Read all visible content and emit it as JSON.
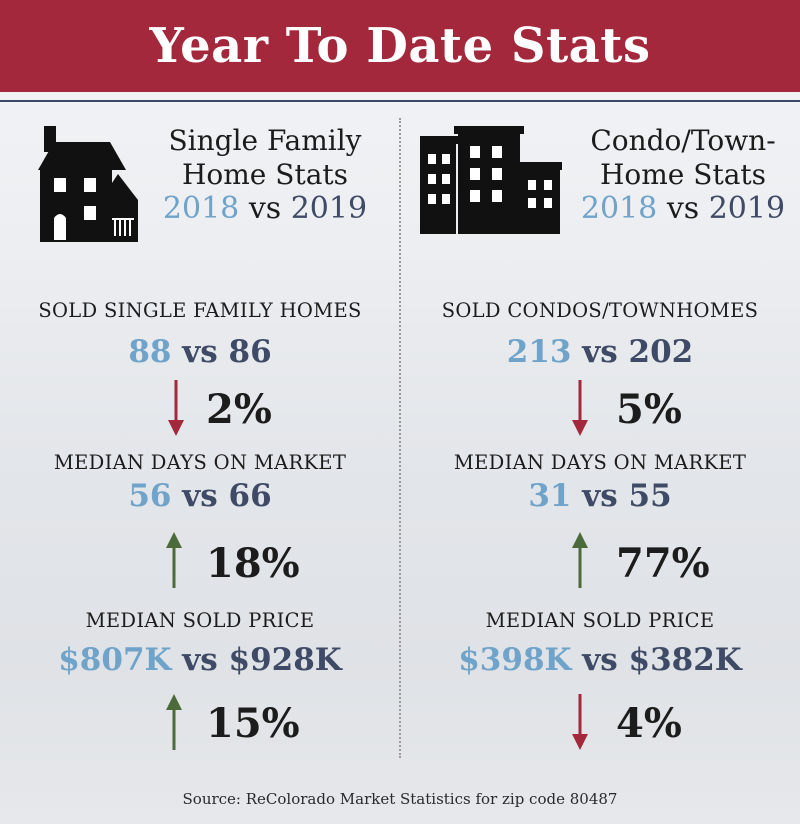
{
  "title": "Year To Date Stats",
  "colors": {
    "banner": "#a3283c",
    "year_2018": "#6fa3c9",
    "year_2019": "#3f4b66",
    "arrow_down": "#a3283c",
    "arrow_up": "#4d6b3a"
  },
  "left": {
    "icon": "house-icon",
    "heading_line1": "Single Family",
    "heading_line2": "Home Stats",
    "year_a": "2018",
    "vs": "vs",
    "year_b": "2019",
    "stats": [
      {
        "label": "SOLD SINGLE FAMILY HOMES",
        "value_a": "88",
        "vs": "vs",
        "value_b": "86",
        "direction": "down",
        "change": "2%"
      },
      {
        "label": "MEDIAN DAYS ON MARKET",
        "value_a": "56",
        "vs": "vs",
        "value_b": "66",
        "direction": "up",
        "change": "18%"
      },
      {
        "label": "MEDIAN SOLD PRICE",
        "value_a": "$807K",
        "vs": "vs",
        "value_b": "$928K",
        "direction": "up",
        "change": "15%"
      }
    ]
  },
  "right": {
    "icon": "buildings-icon",
    "heading_line1": "Condo/Town-",
    "heading_line2": "Home Stats",
    "year_a": "2018",
    "vs": "vs",
    "year_b": "2019",
    "stats": [
      {
        "label": "SOLD CONDOS/TOWNHOMES",
        "value_a": "213",
        "vs": "vs",
        "value_b": "202",
        "direction": "down",
        "change": "5%"
      },
      {
        "label": "MEDIAN DAYS ON MARKET",
        "value_a": "31",
        "vs": "vs",
        "value_b": "55",
        "direction": "up",
        "change": "77%"
      },
      {
        "label": "MEDIAN SOLD PRICE",
        "value_a": "$398K",
        "vs": "vs",
        "value_b": "$382K",
        "direction": "down",
        "change": "4%"
      }
    ]
  },
  "source": "Source: ReColorado Market Statistics for zip code 80487"
}
